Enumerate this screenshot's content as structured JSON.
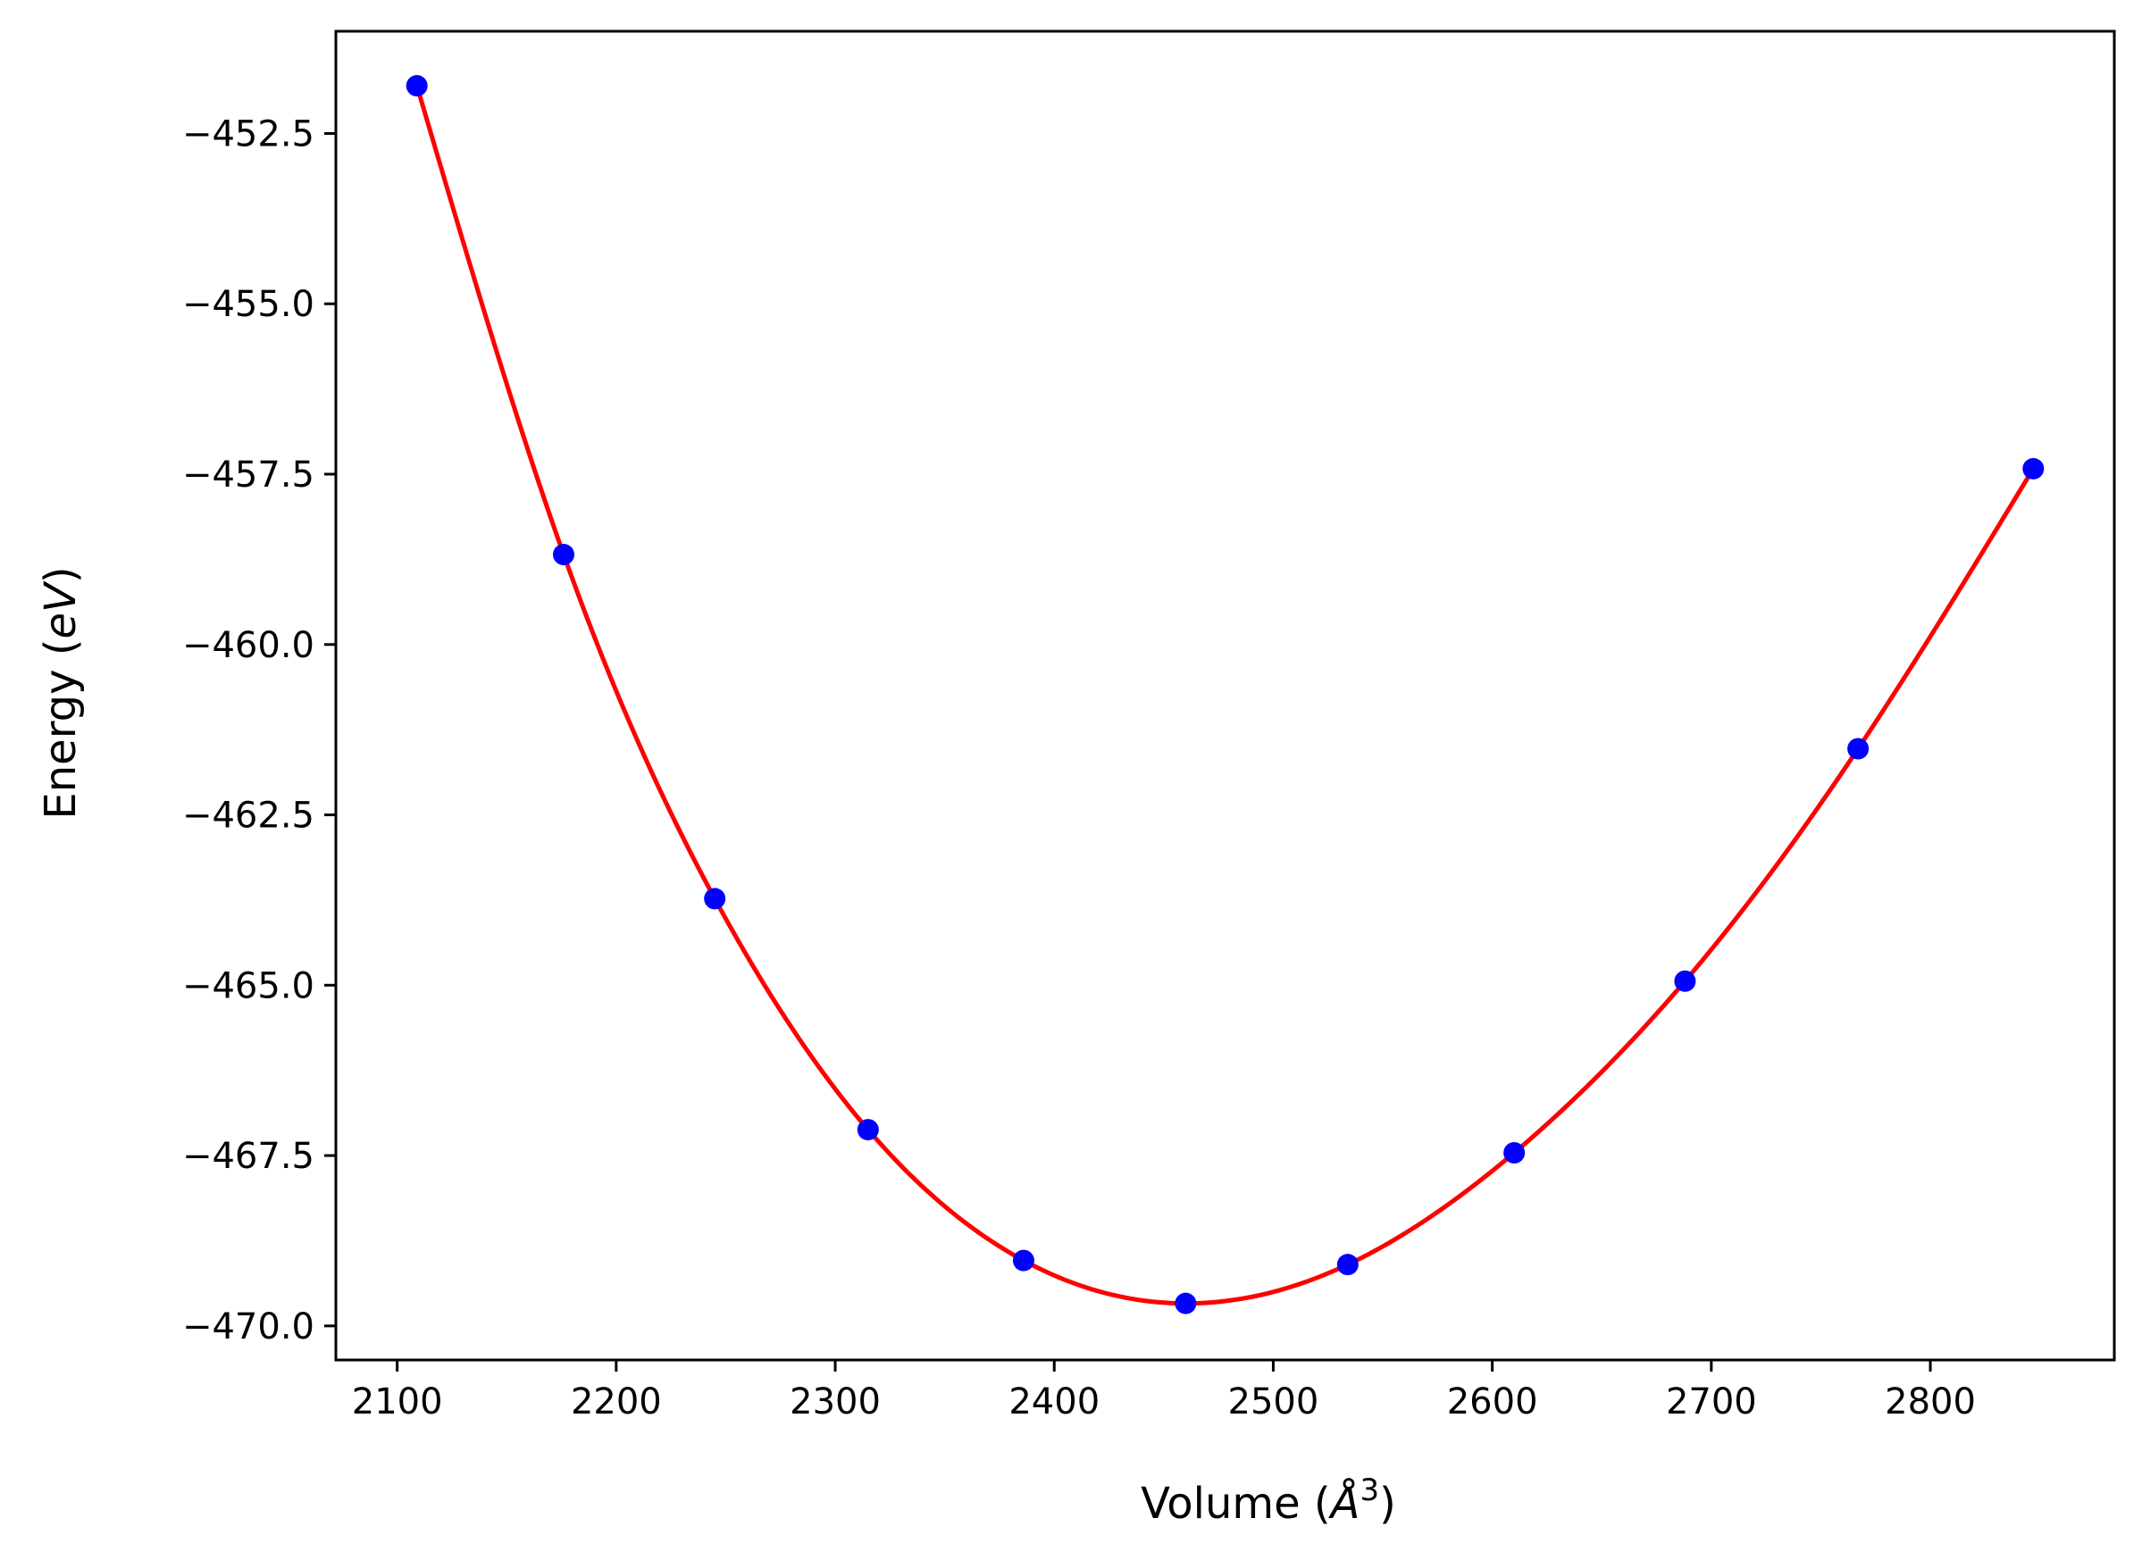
{
  "chart_data": {
    "type": "scatter",
    "xlabel": "Volume (",
    "xlabel_unit": "Å",
    "xlabel_exp": "3",
    "xlabel_close": ")",
    "ylabel": "Energy (",
    "ylabel_unit": "eV",
    "ylabel_close": ")",
    "xlim": [
      2072,
      2884
    ],
    "ylim": [
      -470.5,
      -451.0
    ],
    "xticks": [
      2100,
      2200,
      2300,
      2400,
      2500,
      2600,
      2700,
      2800
    ],
    "xtick_labels": [
      "2100",
      "2200",
      "2300",
      "2400",
      "2500",
      "2600",
      "2700",
      "2800"
    ],
    "yticks": [
      -452.5,
      -455.0,
      -457.5,
      -460.0,
      -462.5,
      -465.0,
      -467.5,
      -470.0
    ],
    "ytick_labels": [
      "−452.5",
      "−455.0",
      "−457.5",
      "−460.0",
      "−462.5",
      "−465.0",
      "−467.5",
      "−470.0"
    ],
    "grid": false,
    "series": [
      {
        "kind": "points",
        "color": "#0000ff",
        "x": [
          2109,
          2176,
          2245,
          2315,
          2386,
          2460,
          2534,
          2610,
          2688,
          2767,
          2847
        ],
        "y": [
          -451.8,
          -458.68,
          -463.73,
          -467.12,
          -469.04,
          -469.67,
          -469.1,
          -467.46,
          -464.94,
          -461.53,
          -457.42
        ]
      },
      {
        "kind": "fit-curve",
        "color": "#ff0000",
        "x": [
          2109,
          2176,
          2245,
          2315,
          2386,
          2460,
          2534,
          2610,
          2688,
          2767,
          2847
        ],
        "y": [
          -451.8,
          -458.68,
          -463.73,
          -467.12,
          -469.04,
          -469.67,
          -469.1,
          -467.46,
          -464.94,
          -461.53,
          -457.42
        ]
      }
    ]
  }
}
